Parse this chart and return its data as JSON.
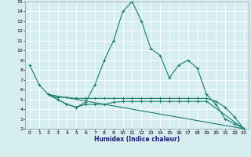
{
  "xlabel": "Humidex (Indice chaleur)",
  "bg_color": "#d6eef0",
  "line_color": "#1a7a6e",
  "grid_color": "#ffffff",
  "xlim": [
    -0.5,
    23.5
  ],
  "ylim": [
    2,
    15
  ],
  "xticks": [
    0,
    1,
    2,
    3,
    4,
    5,
    6,
    7,
    8,
    9,
    10,
    11,
    12,
    13,
    14,
    15,
    16,
    17,
    18,
    19,
    20,
    21,
    22,
    23
  ],
  "yticks": [
    2,
    3,
    4,
    5,
    6,
    7,
    8,
    9,
    10,
    11,
    12,
    13,
    14,
    15
  ],
  "series1_x": [
    0,
    1,
    2,
    3,
    4,
    5,
    6,
    7,
    8,
    9,
    10,
    11,
    12,
    13,
    14,
    15,
    16,
    17,
    18,
    19,
    20,
    21,
    22,
    23
  ],
  "series1_y": [
    8.5,
    6.5,
    5.5,
    5.0,
    4.5,
    4.2,
    4.7,
    6.5,
    9.0,
    11.0,
    14.0,
    15.0,
    13.0,
    10.2,
    9.5,
    7.2,
    8.5,
    9.0,
    8.2,
    5.5,
    4.5,
    3.0,
    2.5,
    2.0
  ],
  "series2_x": [
    2,
    3,
    4,
    5,
    6,
    7,
    8,
    9,
    10,
    11,
    12,
    13,
    14,
    15,
    16,
    17,
    18,
    19,
    20,
    21,
    22,
    23
  ],
  "series2_y": [
    5.5,
    5.2,
    5.2,
    5.1,
    5.1,
    5.1,
    5.1,
    5.1,
    5.1,
    5.1,
    5.1,
    5.1,
    5.1,
    5.1,
    5.1,
    5.1,
    5.1,
    5.1,
    4.8,
    4.2,
    3.2,
    2.0
  ],
  "series3_x": [
    2,
    23
  ],
  "series3_y": [
    5.5,
    2.0
  ],
  "series4_x": [
    2,
    4,
    5,
    6,
    7,
    8,
    9,
    10,
    11,
    12,
    13,
    14,
    15,
    16,
    17,
    18,
    19,
    23
  ],
  "series4_y": [
    5.5,
    4.5,
    4.2,
    4.5,
    4.5,
    4.5,
    4.7,
    4.8,
    4.8,
    4.8,
    4.8,
    4.8,
    4.8,
    4.8,
    4.8,
    4.8,
    4.8,
    2.0
  ]
}
